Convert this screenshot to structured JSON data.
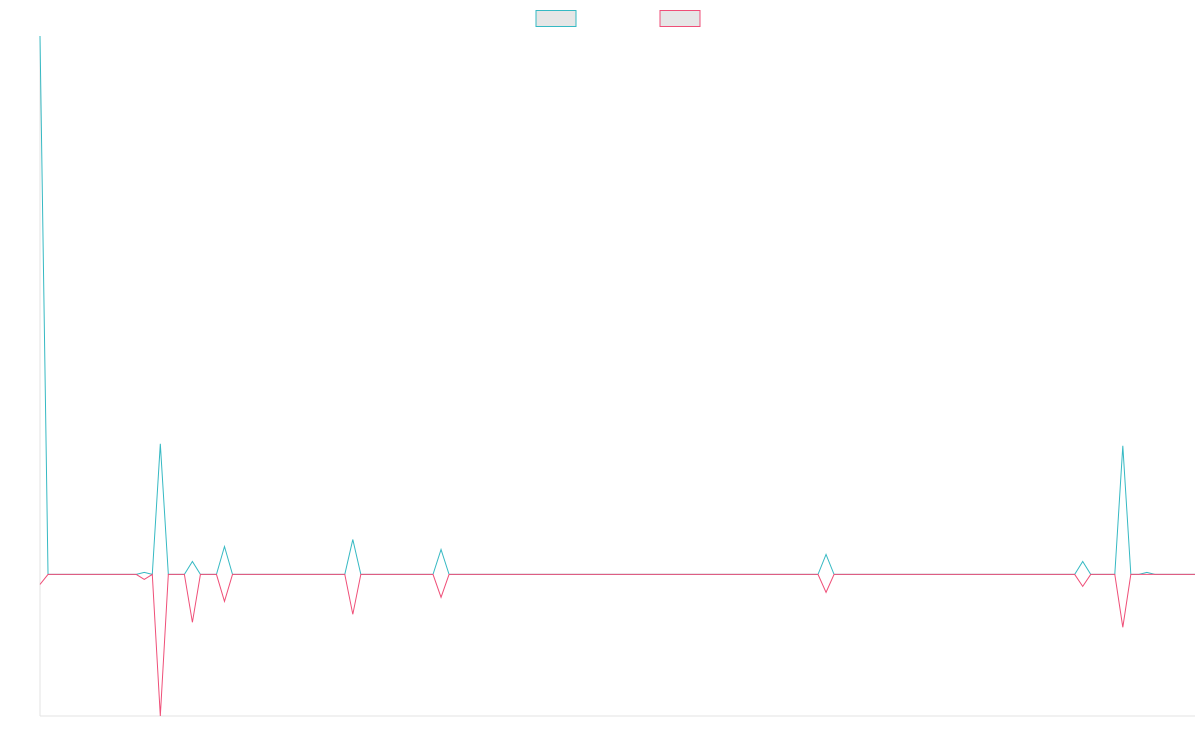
{
  "chart_data": {
    "type": "line",
    "title": "",
    "xlabel": "",
    "ylabel": "",
    "grid": false,
    "legend": "top-center",
    "ylim": [
      -142,
      540
    ],
    "x": [
      0,
      1,
      2,
      3,
      4,
      5,
      6,
      7,
      8,
      9,
      10,
      11,
      12,
      13,
      14,
      15,
      16,
      17,
      18,
      19,
      20,
      21,
      22,
      23,
      24,
      25,
      26,
      27,
      28,
      29,
      30,
      31,
      32,
      33,
      34,
      35,
      36,
      37,
      38,
      39,
      40,
      41,
      42,
      43,
      44,
      45,
      46,
      47,
      48,
      49,
      50,
      51,
      52,
      53,
      54,
      55,
      56,
      57,
      58,
      59,
      60,
      61,
      62,
      63,
      64,
      65,
      66,
      67,
      68,
      69,
      70,
      71,
      72,
      73,
      74,
      75,
      76,
      77,
      78,
      79,
      80,
      81,
      82,
      83,
      84,
      85,
      86,
      87,
      88,
      89,
      90,
      91,
      92,
      93,
      94,
      95,
      96,
      97,
      98,
      99,
      100,
      101,
      102,
      103,
      104,
      105,
      106,
      107,
      108,
      109,
      110,
      111,
      112,
      113,
      114,
      115,
      116,
      117,
      118,
      119,
      120,
      121,
      122,
      123,
      124,
      125,
      126,
      127,
      128,
      129,
      130,
      131,
      132,
      133,
      134,
      135,
      136,
      137,
      138,
      139,
      140,
      141,
      142,
      143,
      144
    ],
    "series": [
      {
        "color": "#36b9c3",
        "values": [
          540,
          0,
          0,
          0,
          0,
          0,
          0,
          0,
          0,
          0,
          0,
          0,
          0,
          2,
          0,
          131,
          0,
          0,
          0,
          13,
          0,
          0,
          0,
          28,
          0,
          0,
          0,
          0,
          0,
          0,
          0,
          0,
          0,
          0,
          0,
          0,
          0,
          0,
          0,
          35,
          0,
          0,
          0,
          0,
          0,
          0,
          0,
          0,
          0,
          0,
          25,
          0,
          0,
          0,
          0,
          0,
          0,
          0,
          0,
          0,
          0,
          0,
          0,
          0,
          0,
          0,
          0,
          0,
          0,
          0,
          0,
          0,
          0,
          0,
          0,
          0,
          0,
          0,
          0,
          0,
          0,
          0,
          0,
          0,
          0,
          0,
          0,
          0,
          0,
          0,
          0,
          0,
          0,
          0,
          0,
          0,
          0,
          0,
          20,
          0,
          0,
          0,
          0,
          0,
          0,
          0,
          0,
          0,
          0,
          0,
          0,
          0,
          0,
          0,
          0,
          0,
          0,
          0,
          0,
          0,
          0,
          0,
          0,
          0,
          0,
          0,
          0,
          0,
          0,
          0,
          13,
          0,
          0,
          0,
          0,
          129,
          0,
          0,
          2,
          0,
          0,
          0,
          0,
          0,
          0
        ]
      },
      {
        "color": "#ef4f78",
        "values": [
          -10,
          0,
          0,
          0,
          0,
          0,
          0,
          0,
          0,
          0,
          0,
          0,
          0,
          -5,
          0,
          -142,
          0,
          0,
          0,
          -48,
          0,
          0,
          0,
          -27,
          0,
          0,
          0,
          0,
          0,
          0,
          0,
          0,
          0,
          0,
          0,
          0,
          0,
          0,
          0,
          -40,
          0,
          0,
          0,
          0,
          0,
          0,
          0,
          0,
          0,
          0,
          -23,
          0,
          0,
          0,
          0,
          0,
          0,
          0,
          0,
          0,
          0,
          0,
          0,
          0,
          0,
          0,
          0,
          0,
          0,
          0,
          0,
          0,
          0,
          0,
          0,
          0,
          0,
          0,
          0,
          0,
          0,
          0,
          0,
          0,
          0,
          0,
          0,
          0,
          0,
          0,
          0,
          0,
          0,
          0,
          0,
          0,
          0,
          0,
          -18,
          0,
          0,
          0,
          0,
          0,
          0,
          0,
          0,
          0,
          0,
          0,
          0,
          0,
          0,
          0,
          0,
          0,
          0,
          0,
          0,
          0,
          0,
          0,
          0,
          0,
          0,
          0,
          0,
          0,
          0,
          0,
          -12,
          0,
          0,
          0,
          0,
          -53,
          0,
          0,
          0,
          0,
          0,
          0,
          0,
          0,
          0
        ]
      }
    ]
  }
}
